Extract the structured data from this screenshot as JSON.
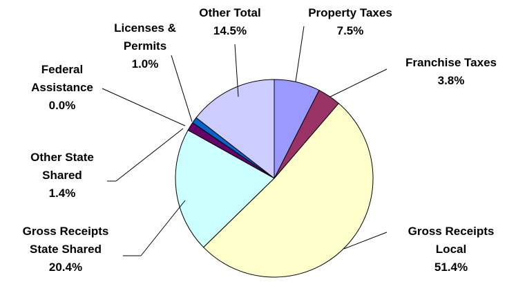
{
  "chart_data": {
    "type": "pie",
    "categories": [
      "Property Taxes",
      "Franchise Taxes",
      "Gross Receipts Local",
      "Gross Receipts State Shared",
      "Other State Shared",
      "Federal Assistance",
      "Licenses & Permits",
      "Other Total"
    ],
    "values": [
      7.5,
      3.8,
      51.4,
      20.4,
      1.4,
      0.0,
      1.0,
      14.5
    ],
    "value_labels": [
      "7.5%",
      "3.8%",
      "51.4%",
      "20.4%",
      "1.4%",
      "0.0%",
      "1.0%",
      "14.5%"
    ],
    "colors": [
      "#9999ff",
      "#993366",
      "#ffffcc",
      "#ccffff",
      "#660066",
      "#ff8080",
      "#0066cc",
      "#ccccff"
    ]
  }
}
